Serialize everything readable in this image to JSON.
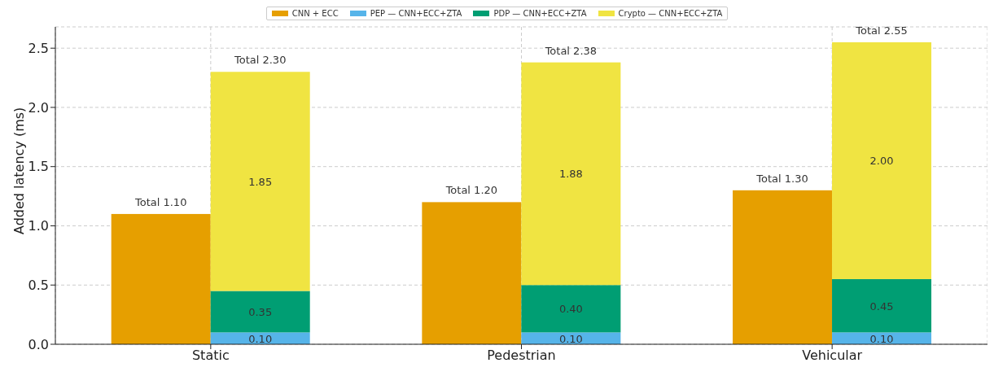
{
  "chart_data": {
    "type": "bar",
    "ylabel": "Added latency (ms)",
    "categories": [
      "Static",
      "Pedestrian",
      "Vehicular"
    ],
    "series": [
      {
        "name": "CNN + ECC",
        "color": "#e69f00",
        "base": [
          0,
          0,
          0
        ],
        "values": [
          1.1,
          1.2,
          1.3
        ],
        "value_labels": [
          "Total 1.10",
          "Total 1.20",
          "Total 1.30"
        ]
      },
      {
        "name": "PEP — CNN+ECC+ZTA",
        "color": "#56b4e9",
        "base": [
          0,
          0,
          0
        ],
        "values": [
          0.1,
          0.1,
          0.1
        ],
        "value_labels": [
          "0.10",
          "0.10",
          "0.10"
        ]
      },
      {
        "name": "PDP — CNN+ECC+ZTA",
        "color": "#009e73",
        "base": [
          0.1,
          0.1,
          0.1
        ],
        "values": [
          0.35,
          0.4,
          0.45
        ],
        "value_labels": [
          "0.35",
          "0.40",
          "0.45"
        ]
      },
      {
        "name": "Crypto — CNN+ECC+ZTA",
        "color": "#f0e442",
        "base": [
          0.45,
          0.5,
          0.55
        ],
        "values": [
          1.85,
          1.88,
          2.0
        ],
        "value_labels": [
          "1.85",
          "1.88",
          "2.00"
        ]
      }
    ],
    "totals": [
      "Total 2.30",
      "Total 2.38",
      "Total 2.55"
    ],
    "ylim": [
      0,
      2.68
    ],
    "yticks": [
      {
        "value": 0,
        "label": "0.0"
      },
      0.5,
      {
        "value": 1,
        "label": "1.0"
      },
      1.5,
      {
        "value": 2,
        "label": "2.0"
      },
      2.5
    ],
    "grid": true,
    "legend": "top"
  }
}
